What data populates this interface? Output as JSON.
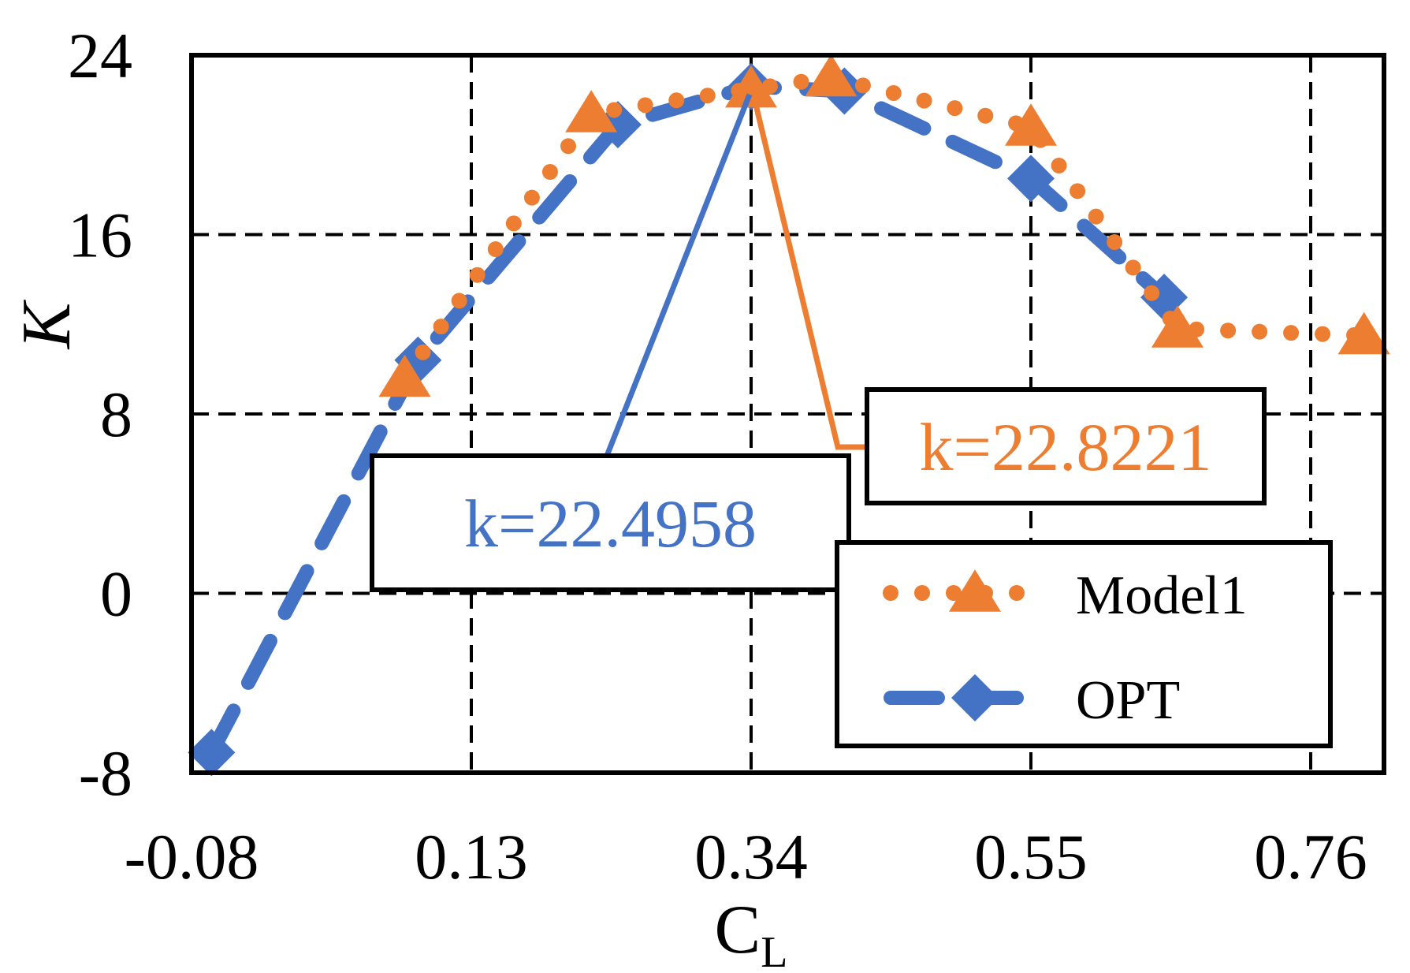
{
  "chart_data": {
    "type": "line",
    "xlabel": "C",
    "xlabel_sub": "L",
    "ylabel": "K",
    "xlim": [
      -0.08,
      0.815
    ],
    "ylim": [
      -8,
      24
    ],
    "x_ticks": [
      -0.08,
      0.13,
      0.34,
      0.55,
      0.76
    ],
    "x_tick_labels": [
      "-0.08",
      "0.13",
      "0.34",
      "0.55",
      "0.76"
    ],
    "y_ticks": [
      -8,
      0,
      8,
      16,
      24
    ],
    "y_tick_labels": [
      "-8",
      "0",
      "8",
      "16",
      "24"
    ],
    "grid": true,
    "legend_position": "bottom-right",
    "series": [
      {
        "name": "Model1",
        "color": "#ED7D31",
        "line_style": "dotted",
        "marker": "triangle",
        "x": [
          0.08,
          0.22,
          0.34,
          0.4,
          0.55,
          0.66,
          0.8
        ],
        "y": [
          9.6,
          21.4,
          22.5,
          23.0,
          20.8,
          11.8,
          11.5
        ]
      },
      {
        "name": "OPT",
        "color": "#4472C4",
        "line_style": "dashed",
        "marker": "diamond",
        "x": [
          -0.065,
          0.09,
          0.24,
          0.34,
          0.41,
          0.55,
          0.65
        ],
        "y": [
          -7.1,
          10.4,
          20.9,
          22.6,
          22.4,
          18.5,
          13.2
        ]
      }
    ],
    "annotations": [
      {
        "text": "k=22.4958",
        "series": "OPT",
        "color": "#4472C4"
      },
      {
        "text": "k=22.8221",
        "series": "Model1",
        "color": "#ED7D31"
      }
    ]
  }
}
